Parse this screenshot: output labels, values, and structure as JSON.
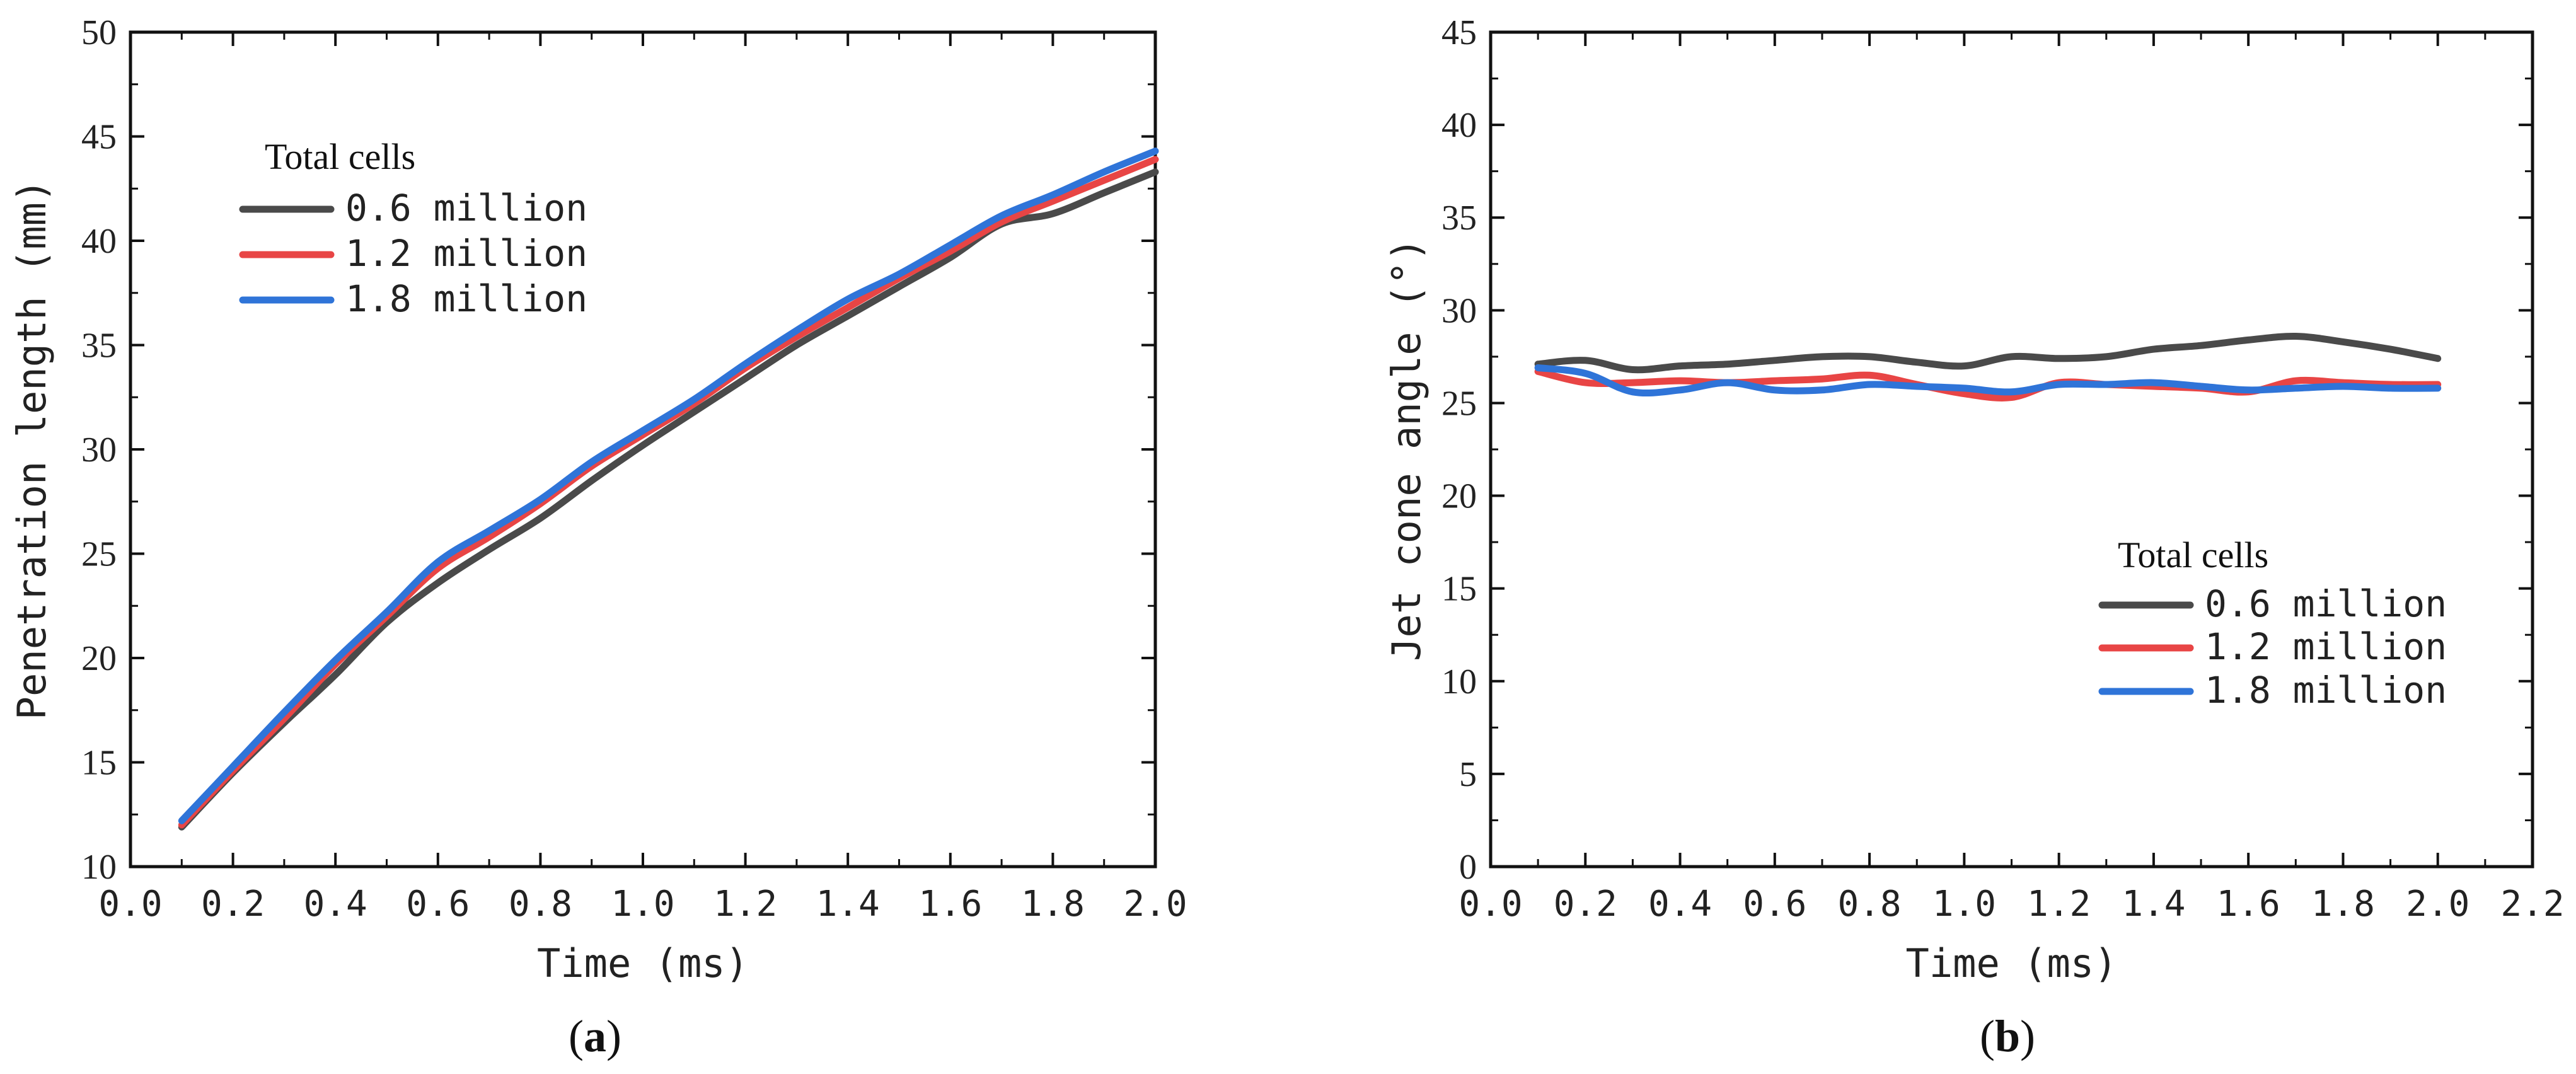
{
  "chart_data": [
    {
      "type": "line",
      "panel_label": "(a)",
      "xlabel": "Time (ms)",
      "ylabel": "Penetration length (mm)",
      "xlim": [
        0.0,
        2.0
      ],
      "ylim": [
        10,
        50
      ],
      "xticks": [
        "0.0",
        "0.2",
        "0.4",
        "0.6",
        "0.8",
        "1.0",
        "1.2",
        "1.4",
        "1.6",
        "1.8",
        "2.0"
      ],
      "yticks": [
        "10",
        "15",
        "20",
        "25",
        "30",
        "35",
        "40",
        "45",
        "50"
      ],
      "legend": {
        "title": "Total cells",
        "position": "upper-left"
      },
      "x": [
        0.1,
        0.2,
        0.3,
        0.4,
        0.5,
        0.6,
        0.7,
        0.8,
        0.9,
        1.0,
        1.1,
        1.2,
        1.3,
        1.4,
        1.5,
        1.6,
        1.7,
        1.8,
        1.9,
        2.0
      ],
      "series": [
        {
          "name": "0.6 million",
          "color": "#4a4a4a",
          "values": [
            11.9,
            14.5,
            16.9,
            19.2,
            21.7,
            23.6,
            25.2,
            26.7,
            28.5,
            30.2,
            31.8,
            33.4,
            35.0,
            36.4,
            37.8,
            39.2,
            40.8,
            41.3,
            42.3,
            43.3
          ]
        },
        {
          "name": "1.2 million",
          "color": "#e84545",
          "values": [
            12.0,
            14.6,
            17.1,
            19.7,
            22.0,
            24.3,
            25.8,
            27.4,
            29.2,
            30.7,
            32.2,
            33.9,
            35.4,
            36.8,
            38.2,
            39.5,
            40.9,
            41.9,
            42.9,
            43.9
          ]
        },
        {
          "name": "1.8 million",
          "color": "#2f74d8",
          "values": [
            12.2,
            14.8,
            17.4,
            19.9,
            22.2,
            24.6,
            26.1,
            27.6,
            29.4,
            30.9,
            32.4,
            34.1,
            35.7,
            37.2,
            38.4,
            39.8,
            41.2,
            42.2,
            43.3,
            44.3
          ]
        }
      ]
    },
    {
      "type": "line",
      "panel_label": "(b)",
      "xlabel": "Time (ms)",
      "ylabel": "Jet cone angle (°)",
      "xlim": [
        0.0,
        2.2
      ],
      "ylim": [
        0,
        45
      ],
      "xticks": [
        "0.0",
        "0.2",
        "0.4",
        "0.6",
        "0.8",
        "1.0",
        "1.2",
        "1.4",
        "1.6",
        "1.8",
        "2.0",
        "2.2"
      ],
      "yticks": [
        "0",
        "5",
        "10",
        "15",
        "20",
        "25",
        "30",
        "35",
        "40",
        "45"
      ],
      "legend": {
        "title": "Total cells",
        "position": "lower-right"
      },
      "x": [
        0.1,
        0.2,
        0.3,
        0.4,
        0.5,
        0.6,
        0.7,
        0.8,
        0.9,
        1.0,
        1.1,
        1.2,
        1.3,
        1.4,
        1.5,
        1.6,
        1.7,
        1.8,
        1.9,
        2.0
      ],
      "series": [
        {
          "name": "0.6 million",
          "color": "#4a4a4a",
          "values": [
            27.1,
            27.3,
            26.8,
            27.0,
            27.1,
            27.3,
            27.5,
            27.5,
            27.2,
            27.0,
            27.5,
            27.4,
            27.5,
            27.9,
            28.1,
            28.4,
            28.6,
            28.3,
            27.9,
            27.4
          ]
        },
        {
          "name": "1.2 million",
          "color": "#e84545",
          "values": [
            26.7,
            26.1,
            26.1,
            26.2,
            26.1,
            26.2,
            26.3,
            26.5,
            26.0,
            25.5,
            25.3,
            26.1,
            26.0,
            25.9,
            25.8,
            25.6,
            26.2,
            26.1,
            26.0,
            26.0
          ]
        },
        {
          "name": "1.8 million",
          "color": "#2f74d8",
          "values": [
            26.9,
            26.6,
            25.6,
            25.7,
            26.1,
            25.7,
            25.7,
            26.0,
            25.9,
            25.8,
            25.6,
            26.0,
            26.0,
            26.1,
            25.9,
            25.7,
            25.8,
            25.9,
            25.8,
            25.8
          ]
        }
      ]
    }
  ]
}
